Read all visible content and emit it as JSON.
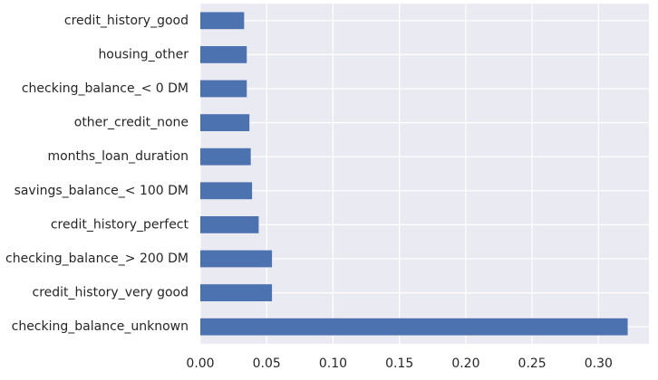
{
  "chart_data": {
    "type": "bar",
    "orientation": "horizontal",
    "categories": [
      "checking_balance_unknown",
      "credit_history_very good",
      "checking_balance_> 200 DM",
      "credit_history_perfect",
      "savings_balance_< 100 DM",
      "months_loan_duration",
      "other_credit_none",
      "checking_balance_< 0 DM",
      "housing_other",
      "credit_history_good"
    ],
    "values": [
      0.322,
      0.054,
      0.054,
      0.044,
      0.039,
      0.038,
      0.037,
      0.035,
      0.035,
      0.033
    ],
    "xticks": [
      0.0,
      0.05,
      0.1,
      0.15,
      0.2,
      0.25,
      0.3
    ],
    "xtick_labels": [
      "0.00",
      "0.05",
      "0.10",
      "0.15",
      "0.20",
      "0.25",
      "0.30"
    ],
    "xlim": [
      0,
      0.338
    ],
    "title": "",
    "xlabel": "",
    "ylabel": "",
    "grid": true,
    "legend": "none",
    "colors": {
      "bar": "#4c72b0",
      "plot_background": "#eaeaf2",
      "grid": "#ffffff"
    }
  }
}
